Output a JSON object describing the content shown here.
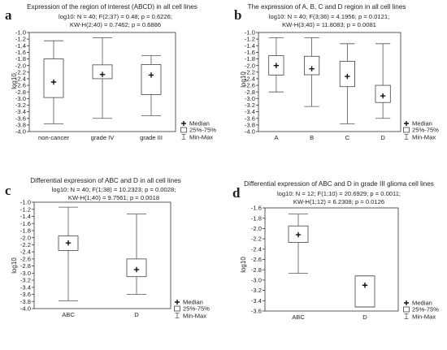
{
  "legend": {
    "median": "Median",
    "iqr": "25%-75%",
    "range": "Min-Max"
  },
  "panels": [
    {
      "letter": "a",
      "title": "Expression of the region of interest (ABCD) in all cell lines",
      "stats1": "log10:   N = 40;  F(2;37) = 0.48; p = 0.6226;",
      "stats2": "KW-H(2;40) = 0.7462; p = 0.6886",
      "ylabel": "log10",
      "chart_data": {
        "type": "boxplot",
        "categories": [
          "non-cancer",
          "grade IV",
          "grade III"
        ],
        "ylim": [
          -4.0,
          -1.0
        ],
        "yticks": [
          -1.0,
          -1.2,
          -1.4,
          -1.6,
          -1.8,
          -2.0,
          -2.2,
          -2.4,
          -2.6,
          -2.8,
          -3.0,
          -3.2,
          -3.4,
          -3.6,
          -3.8,
          -4.0
        ],
        "ytick_labels": [
          "-1.0",
          "-1.2",
          "-1.4",
          "-1.6",
          "-1.8",
          "-2.0",
          "-2.2",
          "-2.4",
          "-2.6",
          "-2.8",
          "-3.0",
          "-3.2",
          "-3.4",
          "-3.6",
          "-3.8",
          "-4.0"
        ],
        "boxes": [
          {
            "category": "non-cancer",
            "min": -3.77,
            "q1": -2.97,
            "median": -2.5,
            "q3": -1.8,
            "max": -1.25
          },
          {
            "category": "grade IV",
            "min": -3.6,
            "q1": -2.4,
            "median": -2.27,
            "q3": -1.98,
            "max": -1.16
          },
          {
            "category": "grade III",
            "min": -3.52,
            "q1": -2.88,
            "median": -2.29,
            "q3": -1.97,
            "max": -1.7
          }
        ]
      }
    },
    {
      "letter": "b",
      "title": "The expression of A, B, C and D region in all cell lines",
      "stats1": "log10:   N = 40;  F(3;36) = 4.1956; p = 0.0121;",
      "stats2": "KW-H(3;40) = 11.8083; p = 0.0081",
      "ylabel": "log10",
      "chart_data": {
        "type": "boxplot",
        "categories": [
          "A",
          "B",
          "C",
          "D"
        ],
        "ylim": [
          -4.0,
          -1.0
        ],
        "yticks": [
          -1.0,
          -1.2,
          -1.4,
          -1.6,
          -1.8,
          -2.0,
          -2.2,
          -2.4,
          -2.6,
          -2.8,
          -3.0,
          -3.2,
          -3.4,
          -3.6,
          -3.8,
          -4.0
        ],
        "ytick_labels": [
          "-1.0",
          "-1.2",
          "-1.4",
          "-1.6",
          "-1.8",
          "-2.0",
          "-2.2",
          "-2.4",
          "-2.6",
          "-2.8",
          "-3.0",
          "-3.2",
          "-3.4",
          "-3.6",
          "-3.8",
          "-4.0"
        ],
        "boxes": [
          {
            "category": "A",
            "min": -2.8,
            "q1": -2.29,
            "median": -2.0,
            "q3": -1.7,
            "max": -1.16
          },
          {
            "category": "B",
            "min": -3.24,
            "q1": -2.28,
            "median": -2.1,
            "q3": -1.72,
            "max": -1.16
          },
          {
            "category": "C",
            "min": -3.77,
            "q1": -2.64,
            "median": -2.33,
            "q3": -1.87,
            "max": -1.34
          },
          {
            "category": "D",
            "min": -3.6,
            "q1": -3.12,
            "median": -2.92,
            "q3": -2.6,
            "max": -1.34
          }
        ]
      }
    },
    {
      "letter": "c",
      "title": "Differential expression of ABC and D in all cell lines",
      "stats1": "log10:   N = 40;  F(1;38) = 10.2323; p = 0.0028;",
      "stats2": "KW-H(1;40) = 9.7561; p = 0.0018",
      "ylabel": "log10",
      "chart_data": {
        "type": "boxplot",
        "categories": [
          "ABC",
          "D"
        ],
        "ylim": [
          -4.0,
          -1.0
        ],
        "yticks": [
          -1.0,
          -1.2,
          -1.4,
          -1.6,
          -1.8,
          -2.0,
          -2.2,
          -2.4,
          -2.6,
          -2.8,
          -3.0,
          -3.2,
          -3.4,
          -3.6,
          -3.8,
          -4.0
        ],
        "ytick_labels": [
          "-1.0",
          "-1.2",
          "-1.4",
          "-1.6",
          "-1.8",
          "-2.0",
          "-2.2",
          "-2.4",
          "-2.6",
          "-2.8",
          "-3.0",
          "-3.2",
          "-3.4",
          "-3.6",
          "-3.8",
          "-4.0"
        ],
        "boxes": [
          {
            "category": "ABC",
            "min": -3.78,
            "q1": -2.36,
            "median": -2.15,
            "q3": -1.95,
            "max": -1.14
          },
          {
            "category": "D",
            "min": -3.6,
            "q1": -3.1,
            "median": -2.9,
            "q3": -2.6,
            "max": -1.33
          }
        ]
      }
    },
    {
      "letter": "d",
      "title": "Differential expression of ABC and D in grade III glioma cell lines",
      "stats1": "log10:   N = 12;  F(1;10) = 20.6929; p = 0.0011;",
      "stats2": "KW-H(1;12) = 6.2308; p = 0.0126",
      "ylabel": "log10",
      "chart_data": {
        "type": "boxplot",
        "categories": [
          "ABC",
          "D"
        ],
        "ylim": [
          -3.6,
          -1.6
        ],
        "yticks": [
          -1.6,
          -1.8,
          -2.0,
          -2.2,
          -2.4,
          -2.6,
          -2.8,
          -3.0,
          -3.2,
          -3.4,
          -3.6
        ],
        "ytick_labels": [
          "-1.6",
          "-1.8",
          "-2.0",
          "-2.2",
          "-2.4",
          "-2.6",
          "-2.8",
          "-3.0",
          "-3.2",
          "-3.4",
          "-3.6"
        ],
        "boxes": [
          {
            "category": "ABC",
            "min": -2.87,
            "q1": -2.27,
            "median": -2.12,
            "q3": -1.95,
            "max": -1.72
          },
          {
            "category": "D",
            "min": -3.52,
            "q1": -3.52,
            "median": -3.1,
            "q3": -2.92,
            "max": -2.92
          }
        ]
      }
    }
  ]
}
